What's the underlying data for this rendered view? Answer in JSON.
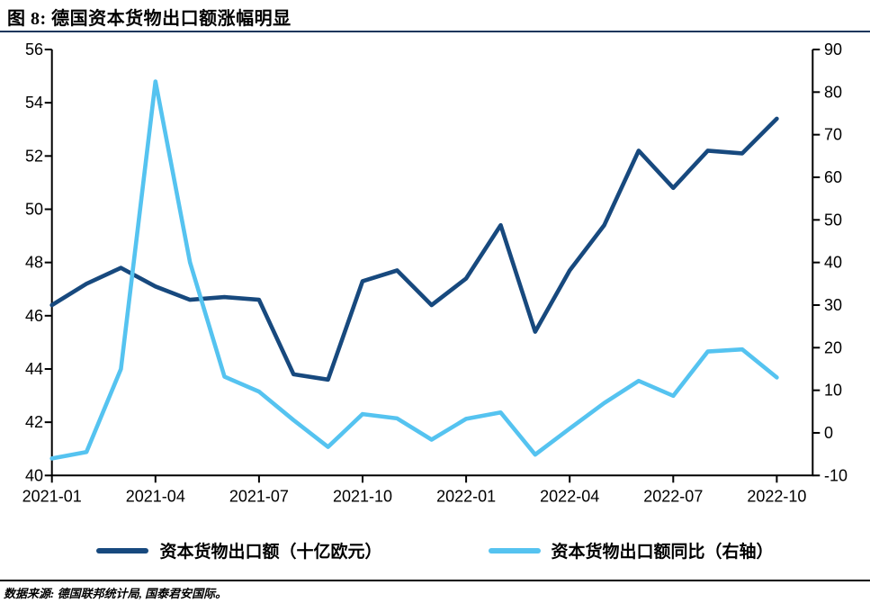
{
  "title": "图 8: 德国资本货物出口额涨幅明显",
  "source": "数据来源: 德国联邦统计局, 国泰君安国际。",
  "colors": {
    "series_primary": "#17497E",
    "series_secondary": "#55C3F0",
    "title_rule": "#16365C",
    "axis": "#000000"
  },
  "legend": [
    {
      "label": "资本货物出口额（十亿欧元）",
      "color": "#17497E"
    },
    {
      "label": "资本货物出口额同比（右轴）",
      "color": "#55C3F0"
    }
  ],
  "chart_data": {
    "type": "line",
    "x": [
      "2021-01",
      "2021-02",
      "2021-03",
      "2021-04",
      "2021-05",
      "2021-06",
      "2021-07",
      "2021-08",
      "2021-09",
      "2021-10",
      "2021-11",
      "2021-12",
      "2022-01",
      "2022-02",
      "2022-03",
      "2022-04",
      "2022-05",
      "2022-06",
      "2022-07",
      "2022-08",
      "2022-09",
      "2022-10"
    ],
    "x_tick_labels": [
      "2021-01",
      "2021-04",
      "2021-07",
      "2021-10",
      "2022-01",
      "2022-04",
      "2022-07",
      "2022-10"
    ],
    "series": [
      {
        "name": "资本货物出口额（十亿欧元）",
        "axis": "left",
        "color": "#17497E",
        "values": [
          46.4,
          47.2,
          47.8,
          47.1,
          46.6,
          46.7,
          46.6,
          43.8,
          43.6,
          47.3,
          47.7,
          46.4,
          47.4,
          49.4,
          45.4,
          47.7,
          49.4,
          52.2,
          50.8,
          52.2,
          52.1,
          53.4
        ]
      },
      {
        "name": "资本货物出口额同比（右轴）",
        "axis": "right",
        "color": "#55C3F0",
        "values": [
          -6,
          -4.5,
          15,
          82.5,
          40,
          13.2,
          9.7,
          3,
          -3.3,
          4.4,
          3.4,
          -1.6,
          3.3,
          4.8,
          -5.1,
          1,
          7,
          12.2,
          8.7,
          19.1,
          19.6,
          13
        ]
      }
    ],
    "left_axis": {
      "min": 40,
      "max": 56,
      "step": 2,
      "ticks": [
        "56",
        "54",
        "52",
        "50",
        "48",
        "46",
        "44",
        "42",
        "40"
      ]
    },
    "right_axis": {
      "min": -10,
      "max": 90,
      "step": 10,
      "ticks": [
        "90",
        "80",
        "70",
        "60",
        "50",
        "40",
        "30",
        "20",
        "10",
        "0",
        "-10"
      ]
    },
    "grid": false,
    "legend_position": "bottom"
  }
}
